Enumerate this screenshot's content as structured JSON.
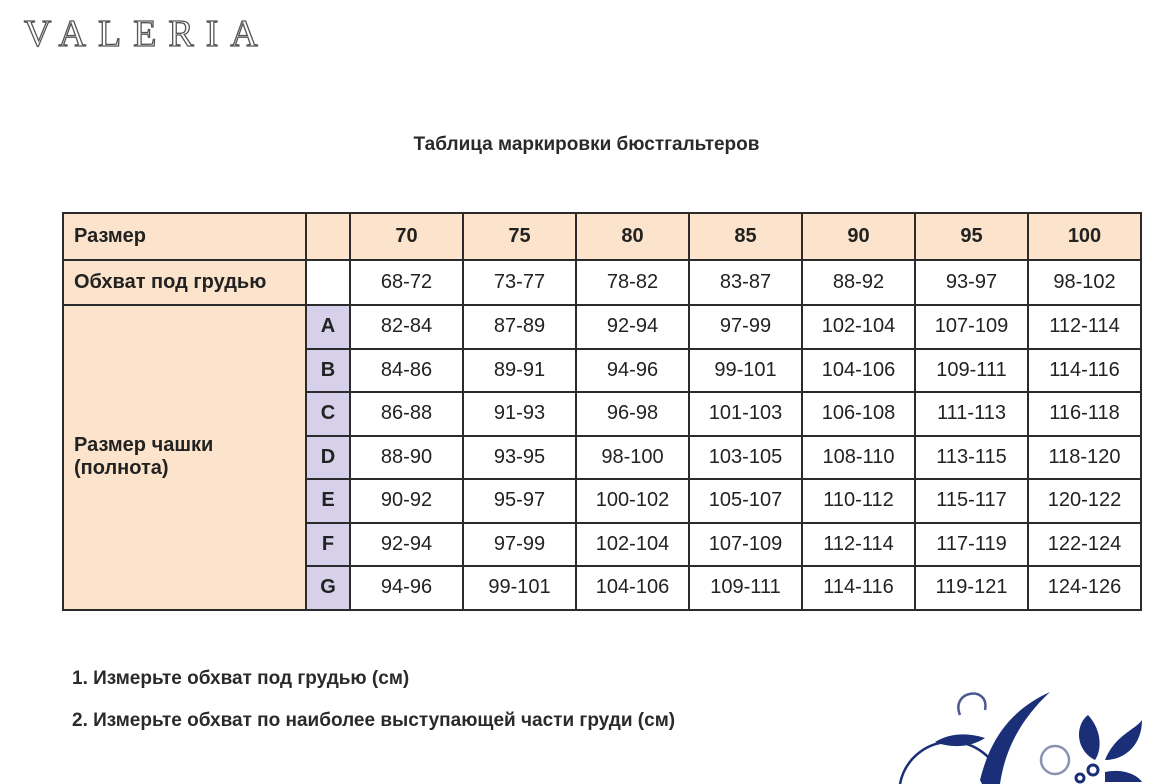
{
  "logo": "VALERIA",
  "title": "Таблица маркировки бюстгальтеров",
  "table": {
    "size_label": "Размер",
    "sizes": [
      "70",
      "75",
      "80",
      "85",
      "90",
      "95",
      "100"
    ],
    "underbust_label": "Обхват под грудью",
    "underbust": [
      "68-72",
      "73-77",
      "78-82",
      "83-87",
      "88-92",
      "93-97",
      "98-102"
    ],
    "cup_label_line1": "Размер чашки",
    "cup_label_line2": "(полнота)",
    "cups": [
      {
        "letter": "A",
        "values": [
          "82-84",
          "87-89",
          "92-94",
          "97-99",
          "102-104",
          "107-109",
          "112-114"
        ]
      },
      {
        "letter": "B",
        "values": [
          "84-86",
          "89-91",
          "94-96",
          "99-101",
          "104-106",
          "109-111",
          "114-116"
        ]
      },
      {
        "letter": "C",
        "values": [
          "86-88",
          "91-93",
          "96-98",
          "101-103",
          "106-108",
          "111-113",
          "116-118"
        ]
      },
      {
        "letter": "D",
        "values": [
          "88-90",
          "93-95",
          "98-100",
          "103-105",
          "108-110",
          "113-115",
          "118-120"
        ]
      },
      {
        "letter": "E",
        "values": [
          "90-92",
          "95-97",
          "100-102",
          "105-107",
          "110-112",
          "115-117",
          "120-122"
        ]
      },
      {
        "letter": "F",
        "values": [
          "92-94",
          "97-99",
          "102-104",
          "107-109",
          "112-114",
          "117-119",
          "122-124"
        ]
      },
      {
        "letter": "G",
        "values": [
          "94-96",
          "99-101",
          "104-106",
          "109-111",
          "114-116",
          "119-121",
          "124-126"
        ]
      }
    ]
  },
  "instructions": [
    "1. Измерьте обхват под грудью (см)",
    "2. Измерьте обхват по наиболее выступающей части груди (см)"
  ],
  "colors": {
    "header_bg": "#fce4cc",
    "cup_letter_bg": "#d6d0ea",
    "ornament": "#1a2f78"
  }
}
